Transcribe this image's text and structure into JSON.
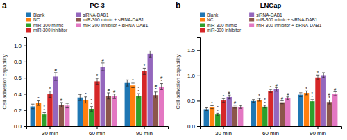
{
  "chart_data": [
    {
      "type": "bar",
      "title": "PC-3",
      "panel_label": "a",
      "ylabel": "Cell adhesion capability",
      "categories": [
        "30 min",
        "60 min",
        "90 min"
      ],
      "ylim": [
        0.0,
        1.1
      ],
      "yticks": [
        {
          "value": 0.0,
          "label": "0.0"
        },
        0.2,
        0.4,
        0.6,
        0.8,
        {
          "value": 1.0,
          "label": "1.0"
        }
      ],
      "grid": false,
      "legend": "top",
      "series": [
        {
          "name": "Blank",
          "values": [
            0.245,
            0.355,
            0.535
          ],
          "errors": [
            0.028,
            0.038,
            0.038
          ],
          "annotations": [
            [],
            [],
            []
          ]
        },
        {
          "name": "NC",
          "values": [
            0.285,
            0.325,
            0.505
          ],
          "errors": [
            0.028,
            0.038,
            0.028
          ],
          "annotations": [
            [
              "*"
            ],
            [
              "*"
            ],
            [
              "*"
            ]
          ]
        },
        {
          "name": "miR-300 mimic",
          "values": [
            0.145,
            0.215,
            0.375
          ],
          "errors": [
            0.022,
            0.028,
            0.028
          ],
          "annotations": [
            [
              "*",
              "*"
            ],
            [
              "*",
              "*"
            ],
            [
              "*",
              "*"
            ]
          ]
        },
        {
          "name": "miR-300 inhibitor",
          "values": [
            0.395,
            0.555,
            0.68
          ],
          "errors": [
            0.038,
            0.038,
            0.038
          ],
          "annotations": [
            [
              "*"
            ],
            [
              "*"
            ],
            [
              "*"
            ]
          ]
        },
        {
          "name": "siRNA-DAB1",
          "values": [
            0.615,
            0.735,
            0.895
          ],
          "errors": [
            0.048,
            0.048,
            0.038
          ],
          "annotations": [
            [
              "#"
            ],
            [
              "#"
            ],
            []
          ]
        },
        {
          "name": "miR-300 mimic + siRNA-DAB1",
          "values": [
            0.265,
            0.375,
            0.385
          ],
          "errors": [
            0.028,
            0.038,
            0.038
          ],
          "annotations": [
            [
              "#"
            ],
            [
              "#"
            ],
            [
              "*",
              "#"
            ]
          ]
        },
        {
          "name": "miR-300 inhibitor + siRNA-DAB1",
          "values": [
            0.255,
            0.37,
            0.49
          ],
          "errors": [
            0.028,
            0.028,
            0.038
          ],
          "annotations": [
            [],
            [
              "#"
            ],
            [
              "*",
              "#"
            ]
          ]
        }
      ]
    },
    {
      "type": "bar",
      "title": "LNCap",
      "panel_label": "b",
      "ylabel": "Cell adhesion capability",
      "categories": [
        "30 min",
        "60 min",
        "90 min"
      ],
      "ylim": [
        0.0,
        1.75
      ],
      "yticks": [
        {
          "value": 0.0,
          "label": "0.0"
        },
        0.5,
        {
          "value": 1.0,
          "label": "1.0"
        },
        1.5
      ],
      "grid": false,
      "legend": "top",
      "series": [
        {
          "name": "Blank",
          "values": [
            0.335,
            0.495,
            0.62
          ],
          "errors": [
            0.028,
            0.028,
            0.038
          ],
          "annotations": [
            [],
            [],
            []
          ]
        },
        {
          "name": "NC",
          "values": [
            0.375,
            0.52,
            0.655
          ],
          "errors": [
            0.028,
            0.028,
            0.038
          ],
          "annotations": [
            [
              "*"
            ],
            [
              "*"
            ],
            [
              "*"
            ]
          ]
        },
        {
          "name": "miR-300 mimic",
          "values": [
            0.23,
            0.385,
            0.49
          ],
          "errors": [
            0.025,
            0.025,
            0.032
          ],
          "annotations": [
            [
              "*",
              "*"
            ],
            [
              "*",
              "*"
            ],
            [
              "*",
              "*"
            ]
          ]
        },
        {
          "name": "miR-300 inhibitor",
          "values": [
            0.505,
            0.695,
            0.96
          ],
          "errors": [
            0.038,
            0.028,
            0.048
          ],
          "annotations": [
            [
              "*"
            ],
            [
              "*"
            ],
            [
              "*"
            ]
          ]
        },
        {
          "name": "siRNA-DAB1",
          "values": [
            0.575,
            0.725,
            1.005
          ],
          "errors": [
            0.038,
            0.038,
            0.048
          ],
          "annotations": [
            [
              "#"
            ],
            [
              "#"
            ],
            []
          ]
        },
        {
          "name": "miR-300 mimic + siRNA-DAB1",
          "values": [
            0.385,
            0.47,
            0.475
          ],
          "errors": [
            0.028,
            0.028,
            0.038
          ],
          "annotations": [
            [
              "#"
            ],
            [
              "#"
            ],
            [
              "*",
              "#"
            ]
          ]
        },
        {
          "name": "miR-300 inhibitor + siRNA-DAB1",
          "values": [
            0.38,
            0.55,
            0.64
          ],
          "errors": [
            0.028,
            0.028,
            0.038
          ],
          "annotations": [
            [],
            [
              "#"
            ],
            [
              "#"
            ]
          ]
        }
      ]
    }
  ]
}
